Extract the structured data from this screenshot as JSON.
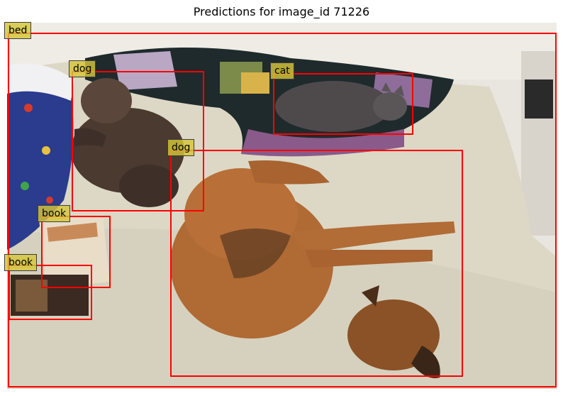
{
  "title": "Predictions for image_id 71226",
  "detections": [
    {
      "label": "bed"
    },
    {
      "label": "dog"
    },
    {
      "label": "cat"
    },
    {
      "label": "dog"
    },
    {
      "label": "book"
    },
    {
      "label": "book"
    }
  ],
  "colors": {
    "box": "#ff0000",
    "label_background": "#d6c638"
  }
}
